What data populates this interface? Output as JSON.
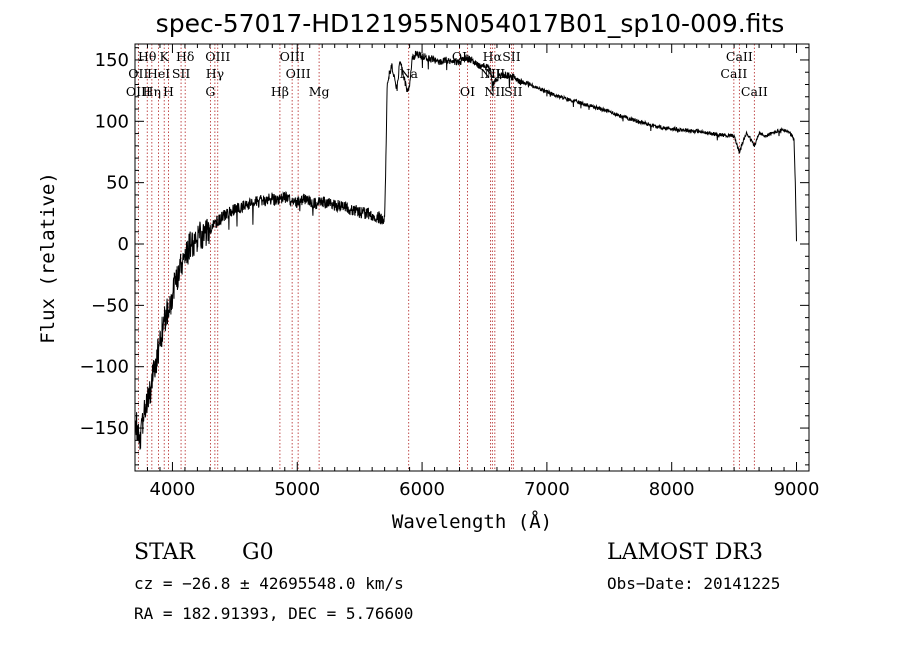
{
  "chart_data": {
    "type": "line",
    "title": "spec-57017-HD121955N054017B01_sp10-009.fits",
    "xlabel": "Wavelength (Å)",
    "ylabel": "Flux (relative)",
    "xlim": [
      3700,
      9100
    ],
    "ylim": [
      -185,
      163
    ],
    "xticks": [
      4000,
      5000,
      6000,
      7000,
      8000,
      9000
    ],
    "xtick_labels": [
      "4000",
      "5000",
      "6000",
      "7000",
      "8000",
      "9000"
    ],
    "yticks": [
      -150,
      -100,
      -50,
      0,
      50,
      100,
      150
    ],
    "ytick_labels": [
      "−150",
      "−100",
      "−50",
      "0",
      "50",
      "100",
      "150"
    ],
    "series": [
      {
        "name": "flux",
        "x": [
          3700,
          3720,
          3740,
          3760,
          3780,
          3800,
          3820,
          3840,
          3860,
          3880,
          3900,
          3920,
          3940,
          3960,
          3980,
          4000,
          4030,
          4060,
          4100,
          4150,
          4200,
          4250,
          4300,
          4350,
          4400,
          4450,
          4500,
          4550,
          4600,
          4650,
          4700,
          4750,
          4800,
          4850,
          4900,
          4950,
          5000,
          5050,
          5100,
          5150,
          5200,
          5250,
          5300,
          5350,
          5400,
          5450,
          5500,
          5550,
          5600,
          5650,
          5680,
          5700,
          5710,
          5720,
          5740,
          5760,
          5780,
          5800,
          5820,
          5850,
          5880,
          5900,
          5920,
          5950,
          6000,
          6050,
          6100,
          6150,
          6200,
          6250,
          6300,
          6350,
          6400,
          6450,
          6500,
          6550,
          6563,
          6600,
          6650,
          6700,
          6750,
          6800,
          6850,
          6900,
          6950,
          7000,
          7100,
          7200,
          7300,
          7400,
          7500,
          7600,
          7700,
          7800,
          7900,
          8000,
          8100,
          8200,
          8300,
          8400,
          8500,
          8542,
          8600,
          8662,
          8700,
          8750,
          8800,
          8850,
          8900,
          8950,
          8980,
          8990,
          9000
        ],
        "y": [
          -140,
          -150,
          -160,
          -145,
          -130,
          -125,
          -120,
          -110,
          -100,
          -90,
          -80,
          -70,
          -60,
          -55,
          -50,
          -40,
          -30,
          -20,
          -10,
          0,
          5,
          8,
          12,
          18,
          22,
          25,
          28,
          30,
          32,
          33,
          35,
          36,
          37,
          35,
          38,
          36,
          34,
          37,
          35,
          33,
          34,
          33,
          32,
          30,
          30,
          28,
          26,
          25,
          24,
          22,
          20,
          20,
          70,
          128,
          140,
          145,
          135,
          125,
          150,
          138,
          125,
          130,
          150,
          155,
          153,
          152,
          150,
          148,
          150,
          149,
          148,
          152,
          150,
          145,
          146,
          142,
          130,
          135,
          138,
          137,
          135,
          132,
          131,
          128,
          126,
          124,
          120,
          117,
          114,
          111,
          108,
          104,
          101,
          98,
          95,
          94,
          93,
          92,
          90,
          89,
          88,
          75,
          91,
          80,
          90,
          88,
          90,
          92,
          93,
          90,
          85,
          50,
          2
        ]
      }
    ],
    "spectral_lines": [
      {
        "label": "Hθ",
        "wavelength": 3798,
        "row": 0
      },
      {
        "label": "K",
        "wavelength": 3934,
        "row": 0
      },
      {
        "label": "Hδ",
        "wavelength": 4102,
        "row": 0
      },
      {
        "label": "OIII",
        "wavelength": 4363,
        "row": 0
      },
      {
        "label": "OIII",
        "wavelength": 4959,
        "row": 0
      },
      {
        "label": "OI",
        "wavelength": 6300,
        "row": 0
      },
      {
        "label": "Hα",
        "wavelength": 6563,
        "row": 0
      },
      {
        "label": "SII",
        "wavelength": 6716,
        "row": 0
      },
      {
        "label": "CaII",
        "wavelength": 8542,
        "row": 0
      },
      {
        "label": "OII",
        "wavelength": 3727,
        "row": 1
      },
      {
        "label": "HeI",
        "wavelength": 3889,
        "row": 1
      },
      {
        "label": "SII",
        "wavelength": 4069,
        "row": 1
      },
      {
        "label": "Hγ",
        "wavelength": 4340,
        "row": 1
      },
      {
        "label": "OIII",
        "wavelength": 5007,
        "row": 1
      },
      {
        "label": "Na",
        "wavelength": 5893,
        "row": 1
      },
      {
        "label": "NII",
        "wavelength": 6548,
        "row": 1
      },
      {
        "label": "NII",
        "wavelength": 6583,
        "row": 1
      },
      {
        "label": "CaII",
        "wavelength": 8498,
        "row": 1
      },
      {
        "label": "OIII",
        "wavelength": 3727,
        "row": 2
      },
      {
        "label": "Hη",
        "wavelength": 3835,
        "row": 2
      },
      {
        "label": "H",
        "wavelength": 3968,
        "row": 2
      },
      {
        "label": "G",
        "wavelength": 4304,
        "row": 2
      },
      {
        "label": "Hβ",
        "wavelength": 4861,
        "row": 2
      },
      {
        "label": "Mg",
        "wavelength": 5175,
        "row": 2
      },
      {
        "label": "OI",
        "wavelength": 6364,
        "row": 2
      },
      {
        "label": "NII",
        "wavelength": 6583,
        "row": 2
      },
      {
        "label": "SII",
        "wavelength": 6731,
        "row": 2
      },
      {
        "label": "CaII",
        "wavelength": 8662,
        "row": 2
      }
    ],
    "colors": {
      "line": "#000000",
      "marker": "#b22222",
      "axes": "#000000"
    }
  },
  "info": {
    "class_label": "STAR",
    "subclass_label": "G0",
    "survey_label": "LAMOST DR3",
    "cz_text": "cz = −26.8 ± 42695548.0 km/s",
    "obsdate_text": "Obs−Date: 20141225",
    "radec_text": "RA = 182.91393, DEC =   5.76600"
  }
}
